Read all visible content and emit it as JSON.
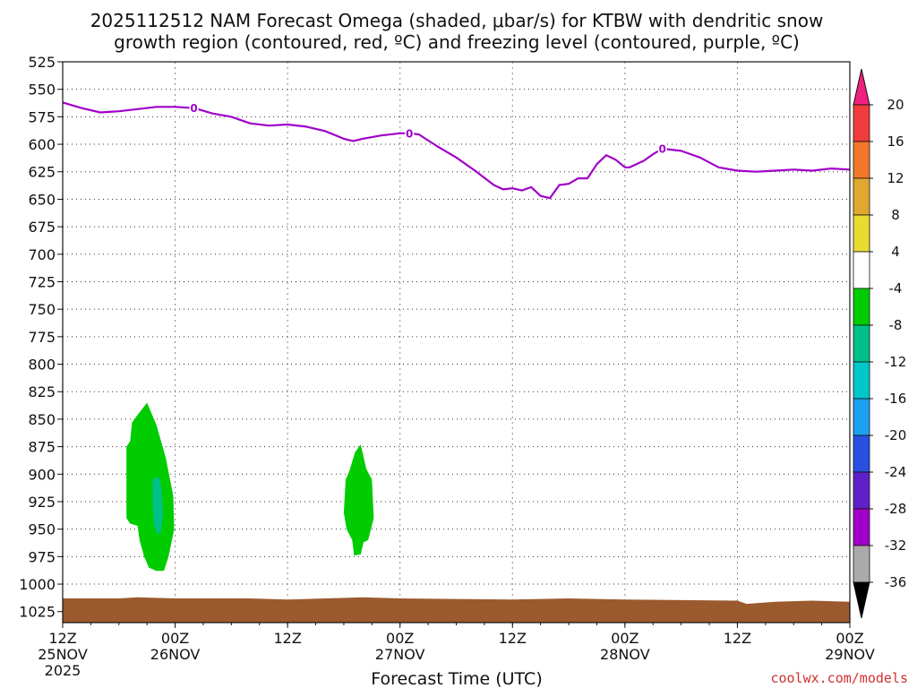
{
  "chart_data": {
    "type": "time-height",
    "title_line1": "2025112512 NAM Forecast Omega (shaded, μbar/s) for KTBW with dendritic snow",
    "title_line2": "growth region (contoured, red, ºC) and freezing level (contoured, purple, ºC)",
    "xlabel": "Forecast Time (UTC)",
    "credit": "coolwx.com/models",
    "colors": {
      "freezing": "#a000c8",
      "ground": "#9a5a2e",
      "credit": "#d03030"
    },
    "ylim": [
      525,
      1035
    ],
    "y_ticks": [
      525,
      550,
      575,
      600,
      625,
      650,
      675,
      700,
      725,
      750,
      775,
      800,
      825,
      850,
      875,
      900,
      925,
      950,
      975,
      1000,
      1025
    ],
    "xlim": [
      0,
      84
    ],
    "x_ticks": [
      {
        "hour": 0,
        "lines": [
          "12Z",
          "25NOV",
          "2025"
        ]
      },
      {
        "hour": 12,
        "lines": [
          "00Z",
          "26NOV"
        ]
      },
      {
        "hour": 24,
        "lines": [
          "12Z"
        ]
      },
      {
        "hour": 36,
        "lines": [
          "00Z",
          "27NOV"
        ]
      },
      {
        "hour": 48,
        "lines": [
          "12Z"
        ]
      },
      {
        "hour": 60,
        "lines": [
          "00Z",
          "28NOV"
        ]
      },
      {
        "hour": 72,
        "lines": [
          "12Z"
        ]
      },
      {
        "hour": 84,
        "lines": [
          "00Z",
          "29NOV"
        ]
      }
    ],
    "freezing_level": {
      "label": "0",
      "label_hours": [
        14,
        37,
        64
      ],
      "hours": [
        0,
        2,
        4,
        6,
        8,
        10,
        12,
        14,
        16,
        18,
        20,
        22,
        24,
        26,
        28,
        30,
        31,
        32,
        34,
        36,
        37,
        38,
        40,
        42,
        44,
        46,
        47,
        48,
        49,
        50,
        51,
        52,
        53,
        54,
        55,
        56,
        57,
        58,
        59,
        60,
        60.5,
        61,
        62,
        63,
        64,
        66,
        68,
        70,
        72,
        74,
        76,
        78,
        80,
        82,
        84
      ],
      "pressure": [
        562,
        567,
        571,
        570,
        568,
        566,
        566,
        567,
        572,
        575,
        581,
        583,
        582,
        584,
        588,
        595,
        597,
        595,
        592,
        590,
        590,
        591,
        602,
        612,
        624,
        637,
        641,
        640,
        642,
        639,
        647,
        649,
        637,
        636,
        631,
        631,
        618,
        610,
        614,
        621,
        621,
        619,
        615,
        609,
        604,
        606,
        612,
        621,
        624,
        625,
        624,
        623,
        624,
        622,
        623
      ]
    },
    "omega": [
      {
        "level": "-4 to -8",
        "color": "#00cc00",
        "points": [
          [
            6.8,
            940
          ],
          [
            6.8,
            875
          ],
          [
            7.2,
            870
          ],
          [
            7.4,
            853
          ],
          [
            8.0,
            846
          ],
          [
            9.0,
            835
          ],
          [
            10.0,
            855
          ],
          [
            11.0,
            885
          ],
          [
            11.8,
            920
          ],
          [
            11.9,
            950
          ],
          [
            11.3,
            975
          ],
          [
            10.8,
            988
          ],
          [
            10.0,
            988
          ],
          [
            9.2,
            985
          ],
          [
            8.7,
            975
          ],
          [
            8.2,
            960
          ],
          [
            8.0,
            947
          ],
          [
            7.2,
            945
          ]
        ]
      },
      {
        "level": "-4 to -8",
        "color": "#00cc00",
        "points": [
          [
            30.6,
            897
          ],
          [
            31.2,
            880
          ],
          [
            31.8,
            873
          ],
          [
            32.4,
            895
          ],
          [
            33.0,
            905
          ],
          [
            33.2,
            940
          ],
          [
            32.6,
            960
          ],
          [
            32.1,
            962
          ],
          [
            31.8,
            973
          ],
          [
            31.1,
            974
          ],
          [
            30.9,
            960
          ],
          [
            30.3,
            950
          ],
          [
            30.0,
            935
          ],
          [
            30.2,
            905
          ]
        ]
      },
      {
        "level": "-8 to -12",
        "color": "#00c08a",
        "points": [
          [
            9.6,
            905
          ],
          [
            10.2,
            902
          ],
          [
            10.5,
            910
          ],
          [
            10.7,
            935
          ],
          [
            10.5,
            952
          ],
          [
            10.1,
            955
          ],
          [
            9.7,
            945
          ],
          [
            9.6,
            925
          ]
        ]
      }
    ],
    "ground": {
      "hours": [
        0,
        6,
        8,
        12,
        20,
        24,
        28,
        32,
        36,
        48,
        54,
        60,
        72,
        73,
        76,
        80,
        84
      ],
      "top_pressure": [
        1013,
        1013,
        1012,
        1013,
        1013,
        1014,
        1013,
        1012,
        1013,
        1014,
        1013,
        1014,
        1015,
        1018,
        1016,
        1015,
        1016
      ]
    },
    "colorbar": {
      "labels": [
        "20",
        "16",
        "12",
        "8",
        "4",
        "-4",
        "-8",
        "-12",
        "-16",
        "-20",
        "-24",
        "-28",
        "-32",
        "-36"
      ],
      "colors": [
        "#f02080",
        "#f03c3c",
        "#f07828",
        "#e0a830",
        "#e8dc30",
        "#ffffff",
        "#00cc00",
        "#00c08a",
        "#00c8c8",
        "#1ea0f0",
        "#2850e0",
        "#6020c8",
        "#a000c8",
        "#aaaaaa",
        "#000000"
      ]
    }
  }
}
